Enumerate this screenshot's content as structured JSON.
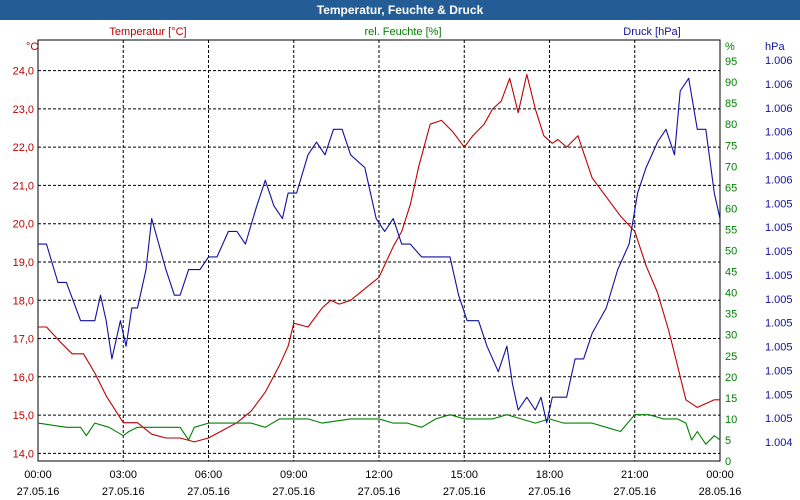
{
  "window": {
    "title": "Temperatur, Feuchte & Druck"
  },
  "chart_data": {
    "type": "line",
    "title": "Temperatur, Feuchte & Druck",
    "x_ticks": [
      {
        "time": "00:00",
        "date": "27.05.16"
      },
      {
        "time": "03:00",
        "date": "27.05.16"
      },
      {
        "time": "06:00",
        "date": "27.05.16"
      },
      {
        "time": "09:00",
        "date": "27.05.16"
      },
      {
        "time": "12:00",
        "date": "27.05.16"
      },
      {
        "time": "15:00",
        "date": "27.05.16"
      },
      {
        "time": "18:00",
        "date": "27.05.16"
      },
      {
        "time": "21:00",
        "date": "27.05.16"
      },
      {
        "time": "00:00",
        "date": "28.05.16"
      }
    ],
    "xlim": [
      0,
      24
    ],
    "axes": {
      "temperature": {
        "label": "Temperatur [°C]",
        "unit": "°C",
        "color": "#c00000",
        "ylim": [
          13.8,
          24.8
        ],
        "tick_values": [
          14,
          15,
          16,
          17,
          18,
          19,
          20,
          21,
          22,
          23,
          24
        ],
        "tick_labels": [
          "14,0",
          "15,0",
          "16,0",
          "17,0",
          "18,0",
          "19,0",
          "20,0",
          "21,0",
          "22,0",
          "23,0",
          "24,0"
        ]
      },
      "humidity": {
        "label": "rel. Feuchte [%]",
        "unit": "%",
        "color": "#008000",
        "ylim": [
          0,
          100
        ],
        "tick_values": [
          0,
          5,
          10,
          15,
          20,
          25,
          30,
          35,
          40,
          45,
          50,
          55,
          60,
          65,
          70,
          75,
          80,
          85,
          90,
          95
        ],
        "tick_labels": [
          "0",
          "5",
          "10",
          "15",
          "20",
          "25",
          "30",
          "35",
          "40",
          "45",
          "50",
          "55",
          "60",
          "65",
          "70",
          "75",
          "80",
          "85",
          "90",
          "95"
        ]
      },
      "pressure": {
        "label": "Druck [hPa]",
        "unit": "hPa",
        "color": "#1010a0",
        "ylim": [
          1003.5,
          1006.8
        ],
        "tick_labels": [
          "1.004",
          "1.005",
          "1.005",
          "1.005",
          "1.005",
          "1.005",
          "1.005",
          "1.005",
          "1.005",
          "1.005",
          "1.005",
          "1.006",
          "1.006",
          "1.006",
          "1.006",
          "1.006",
          "1.006"
        ]
      }
    },
    "series": [
      {
        "name": "Temperatur [°C]",
        "axis": "temperature",
        "color": "#c00000",
        "x": [
          0,
          0.3,
          0.8,
          1.2,
          1.6,
          2.0,
          2.4,
          3.0,
          3.5,
          4.0,
          4.5,
          5.0,
          5.5,
          6.0,
          6.5,
          7.0,
          7.5,
          8.0,
          8.5,
          8.8,
          9.0,
          9.5,
          10.0,
          10.3,
          10.6,
          11.0,
          11.5,
          12.0,
          12.5,
          12.8,
          13.1,
          13.4,
          13.8,
          14.2,
          14.6,
          15.0,
          15.3,
          15.7,
          16.0,
          16.3,
          16.6,
          16.9,
          17.2,
          17.5,
          17.8,
          18.1,
          18.3,
          18.6,
          19.0,
          19.5,
          20.0,
          20.5,
          21.0,
          21.4,
          21.8,
          22.2,
          22.5,
          22.8,
          23.2,
          23.5,
          23.8,
          24.0
        ],
        "y": [
          17.3,
          17.3,
          16.9,
          16.6,
          16.6,
          16.1,
          15.5,
          14.8,
          14.8,
          14.5,
          14.4,
          14.4,
          14.3,
          14.4,
          14.6,
          14.8,
          15.1,
          15.6,
          16.3,
          16.8,
          17.4,
          17.3,
          17.8,
          18.0,
          17.9,
          18.0,
          18.3,
          18.6,
          19.4,
          19.8,
          20.5,
          21.5,
          22.6,
          22.7,
          22.4,
          22.0,
          22.3,
          22.6,
          23.0,
          23.2,
          23.8,
          22.9,
          23.9,
          23.0,
          22.3,
          22.1,
          22.2,
          22.0,
          22.3,
          21.2,
          20.7,
          20.2,
          19.8,
          18.9,
          18.2,
          17.2,
          16.3,
          15.4,
          15.2,
          15.3,
          15.4,
          15.4
        ]
      },
      {
        "name": "rel. Feuchte [%]",
        "axis": "humidity",
        "color": "#008000",
        "x": [
          0,
          1.0,
          1.5,
          1.7,
          2.0,
          2.5,
          3.0,
          3.2,
          3.5,
          4.0,
          4.5,
          5.0,
          5.3,
          5.5,
          6.0,
          6.5,
          7.0,
          7.5,
          8.0,
          8.5,
          9.0,
          9.5,
          10.0,
          11.0,
          12.0,
          12.5,
          13.0,
          13.5,
          14.0,
          14.5,
          15.0,
          15.5,
          16.0,
          16.5,
          17.0,
          17.5,
          18.0,
          18.5,
          19.0,
          19.5,
          20.0,
          20.5,
          21.0,
          21.5,
          22.0,
          22.5,
          22.8,
          23.0,
          23.2,
          23.5,
          23.8,
          24.0
        ],
        "y": [
          9,
          8,
          8,
          6,
          9,
          8,
          6,
          7,
          8,
          8,
          8,
          8,
          5,
          8,
          9,
          9,
          9,
          9,
          8,
          10,
          10,
          10,
          9,
          10,
          10,
          9,
          9,
          8,
          10,
          11,
          10,
          10,
          10,
          11,
          10,
          9,
          10,
          9,
          9,
          9,
          8,
          7,
          11,
          11,
          10,
          10,
          9,
          5,
          7,
          4,
          6,
          5
        ]
      },
      {
        "name": "Druck [hPa]",
        "axis": "pressure",
        "color": "#1010a0",
        "x": [
          0,
          0.3,
          0.7,
          1.0,
          1.5,
          2.0,
          2.2,
          2.4,
          2.6,
          2.9,
          3.1,
          3.3,
          3.5,
          3.8,
          4.0,
          4.5,
          4.8,
          5.0,
          5.3,
          5.7,
          6.0,
          6.3,
          6.7,
          7.0,
          7.3,
          7.7,
          8.0,
          8.3,
          8.6,
          8.8,
          9.1,
          9.5,
          9.8,
          10.1,
          10.4,
          10.7,
          11.0,
          11.5,
          11.9,
          12.2,
          12.5,
          12.8,
          13.1,
          13.5,
          14.0,
          14.5,
          14.8,
          15.1,
          15.5,
          15.8,
          16.2,
          16.5,
          16.7,
          16.9,
          17.2,
          17.5,
          17.7,
          17.9,
          18.1,
          18.3,
          18.6,
          18.9,
          19.2,
          19.5,
          20.0,
          20.4,
          20.8,
          21.1,
          21.4,
          21.8,
          22.1,
          22.4,
          22.6,
          22.9,
          23.2,
          23.5,
          23.8,
          24.0
        ],
        "y": [
          1005.2,
          1005.2,
          1004.9,
          1004.9,
          1004.6,
          1004.6,
          1004.8,
          1004.6,
          1004.3,
          1004.6,
          1004.4,
          1004.7,
          1004.7,
          1005.0,
          1005.4,
          1005.0,
          1004.8,
          1004.8,
          1005.0,
          1005.0,
          1005.1,
          1005.1,
          1005.3,
          1005.3,
          1005.2,
          1005.5,
          1005.7,
          1005.5,
          1005.4,
          1005.6,
          1005.6,
          1005.9,
          1006.0,
          1005.9,
          1006.1,
          1006.1,
          1005.9,
          1005.8,
          1005.4,
          1005.3,
          1005.4,
          1005.2,
          1005.2,
          1005.1,
          1005.1,
          1005.1,
          1004.8,
          1004.6,
          1004.6,
          1004.4,
          1004.2,
          1004.4,
          1004.1,
          1003.9,
          1004.0,
          1003.9,
          1004.0,
          1003.8,
          1004.0,
          1004.0,
          1004.0,
          1004.3,
          1004.3,
          1004.5,
          1004.7,
          1005.0,
          1005.2,
          1005.6,
          1005.8,
          1006.0,
          1006.1,
          1005.9,
          1006.4,
          1006.5,
          1006.1,
          1006.1,
          1005.6,
          1005.4
        ]
      }
    ]
  }
}
